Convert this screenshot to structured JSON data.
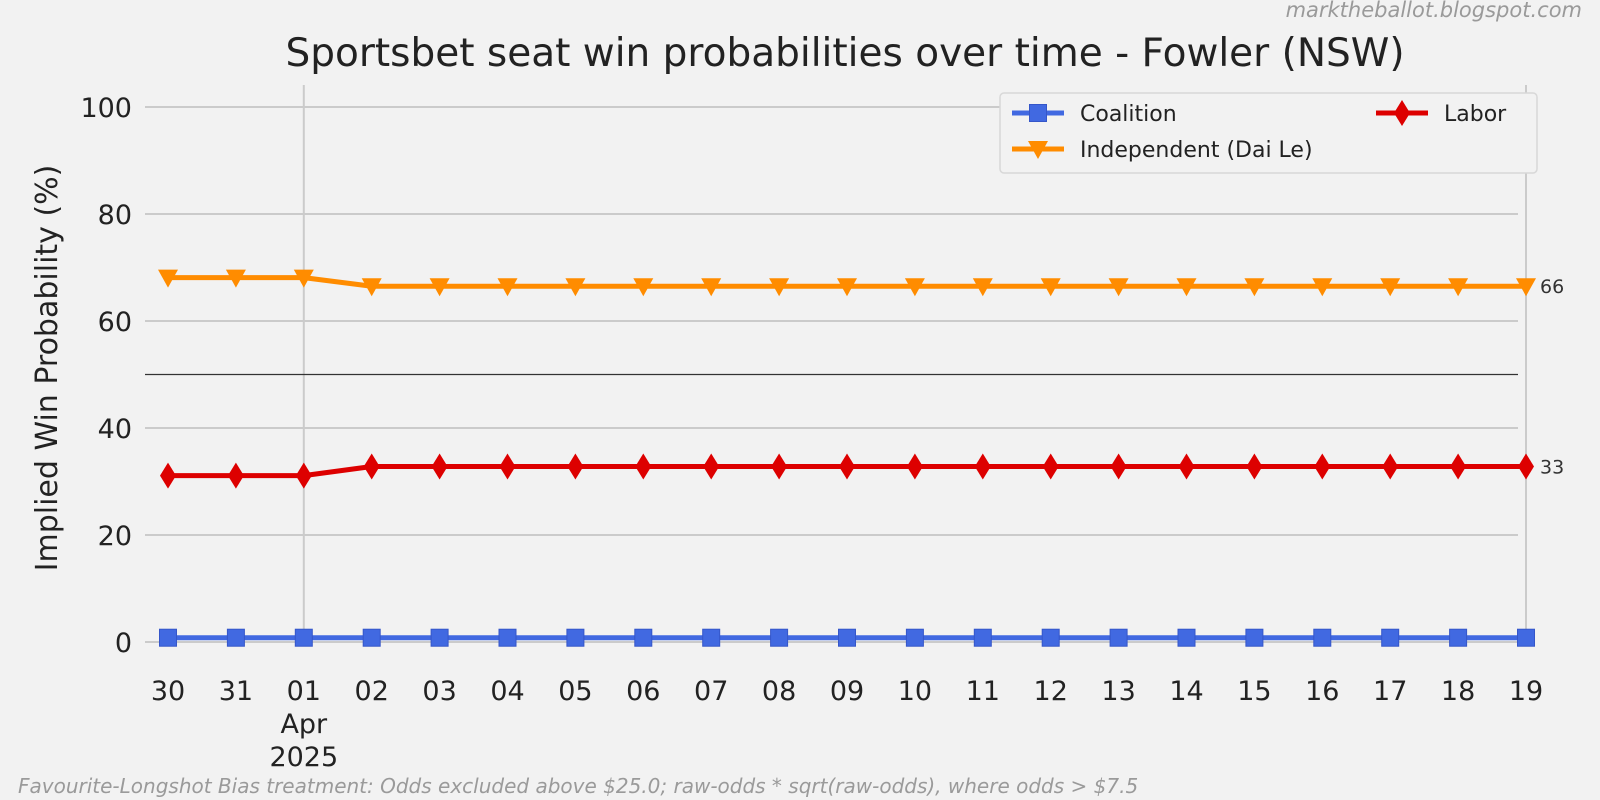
{
  "attribution": "marktheballot.blogspot.com",
  "footnote": "Favourite-Longshot Bias treatment: Odds excluded above $25.0; raw-odds * sqrt(raw-odds), where odds > $7.5",
  "chart_data": {
    "type": "line",
    "title": "Sportsbet seat win probabilities over time - Fowler (NSW)",
    "ylabel": "Implied Win Probability (%)",
    "xlabel": "",
    "ylim": [
      0,
      100
    ],
    "yticks": [
      0,
      20,
      40,
      60,
      80,
      100
    ],
    "x": [
      "30",
      "31",
      "01",
      "02",
      "03",
      "04",
      "05",
      "06",
      "07",
      "08",
      "09",
      "10",
      "11",
      "12",
      "13",
      "14",
      "15",
      "16",
      "17",
      "18",
      "19"
    ],
    "x_month_label": {
      "at": "01",
      "lines": [
        "Apr",
        "2025"
      ]
    },
    "reference_line": 50,
    "grid": true,
    "legend_position": "top-right",
    "series": [
      {
        "name": "Coalition",
        "color": "#4169e1",
        "marker": "square",
        "values": [
          0.8,
          0.8,
          0.8,
          0.8,
          0.8,
          0.8,
          0.8,
          0.8,
          0.8,
          0.8,
          0.8,
          0.8,
          0.8,
          0.8,
          0.8,
          0.8,
          0.8,
          0.8,
          0.8,
          0.8,
          0.8
        ]
      },
      {
        "name": "Independent (Dai Le)",
        "color": "#ff8c00",
        "marker": "triangle-down",
        "end_label": "66",
        "values": [
          68.1,
          68.1,
          68.1,
          66.5,
          66.5,
          66.5,
          66.5,
          66.5,
          66.5,
          66.5,
          66.5,
          66.5,
          66.5,
          66.5,
          66.5,
          66.5,
          66.5,
          66.5,
          66.5,
          66.5,
          66.5
        ]
      },
      {
        "name": "Labor",
        "color": "#dd0000",
        "marker": "diamond",
        "end_label": "33",
        "values": [
          31.1,
          31.1,
          31.1,
          32.8,
          32.8,
          32.8,
          32.8,
          32.8,
          32.8,
          32.8,
          32.8,
          32.8,
          32.8,
          32.8,
          32.8,
          32.8,
          32.8,
          32.8,
          32.8,
          32.8,
          32.8
        ]
      }
    ]
  }
}
